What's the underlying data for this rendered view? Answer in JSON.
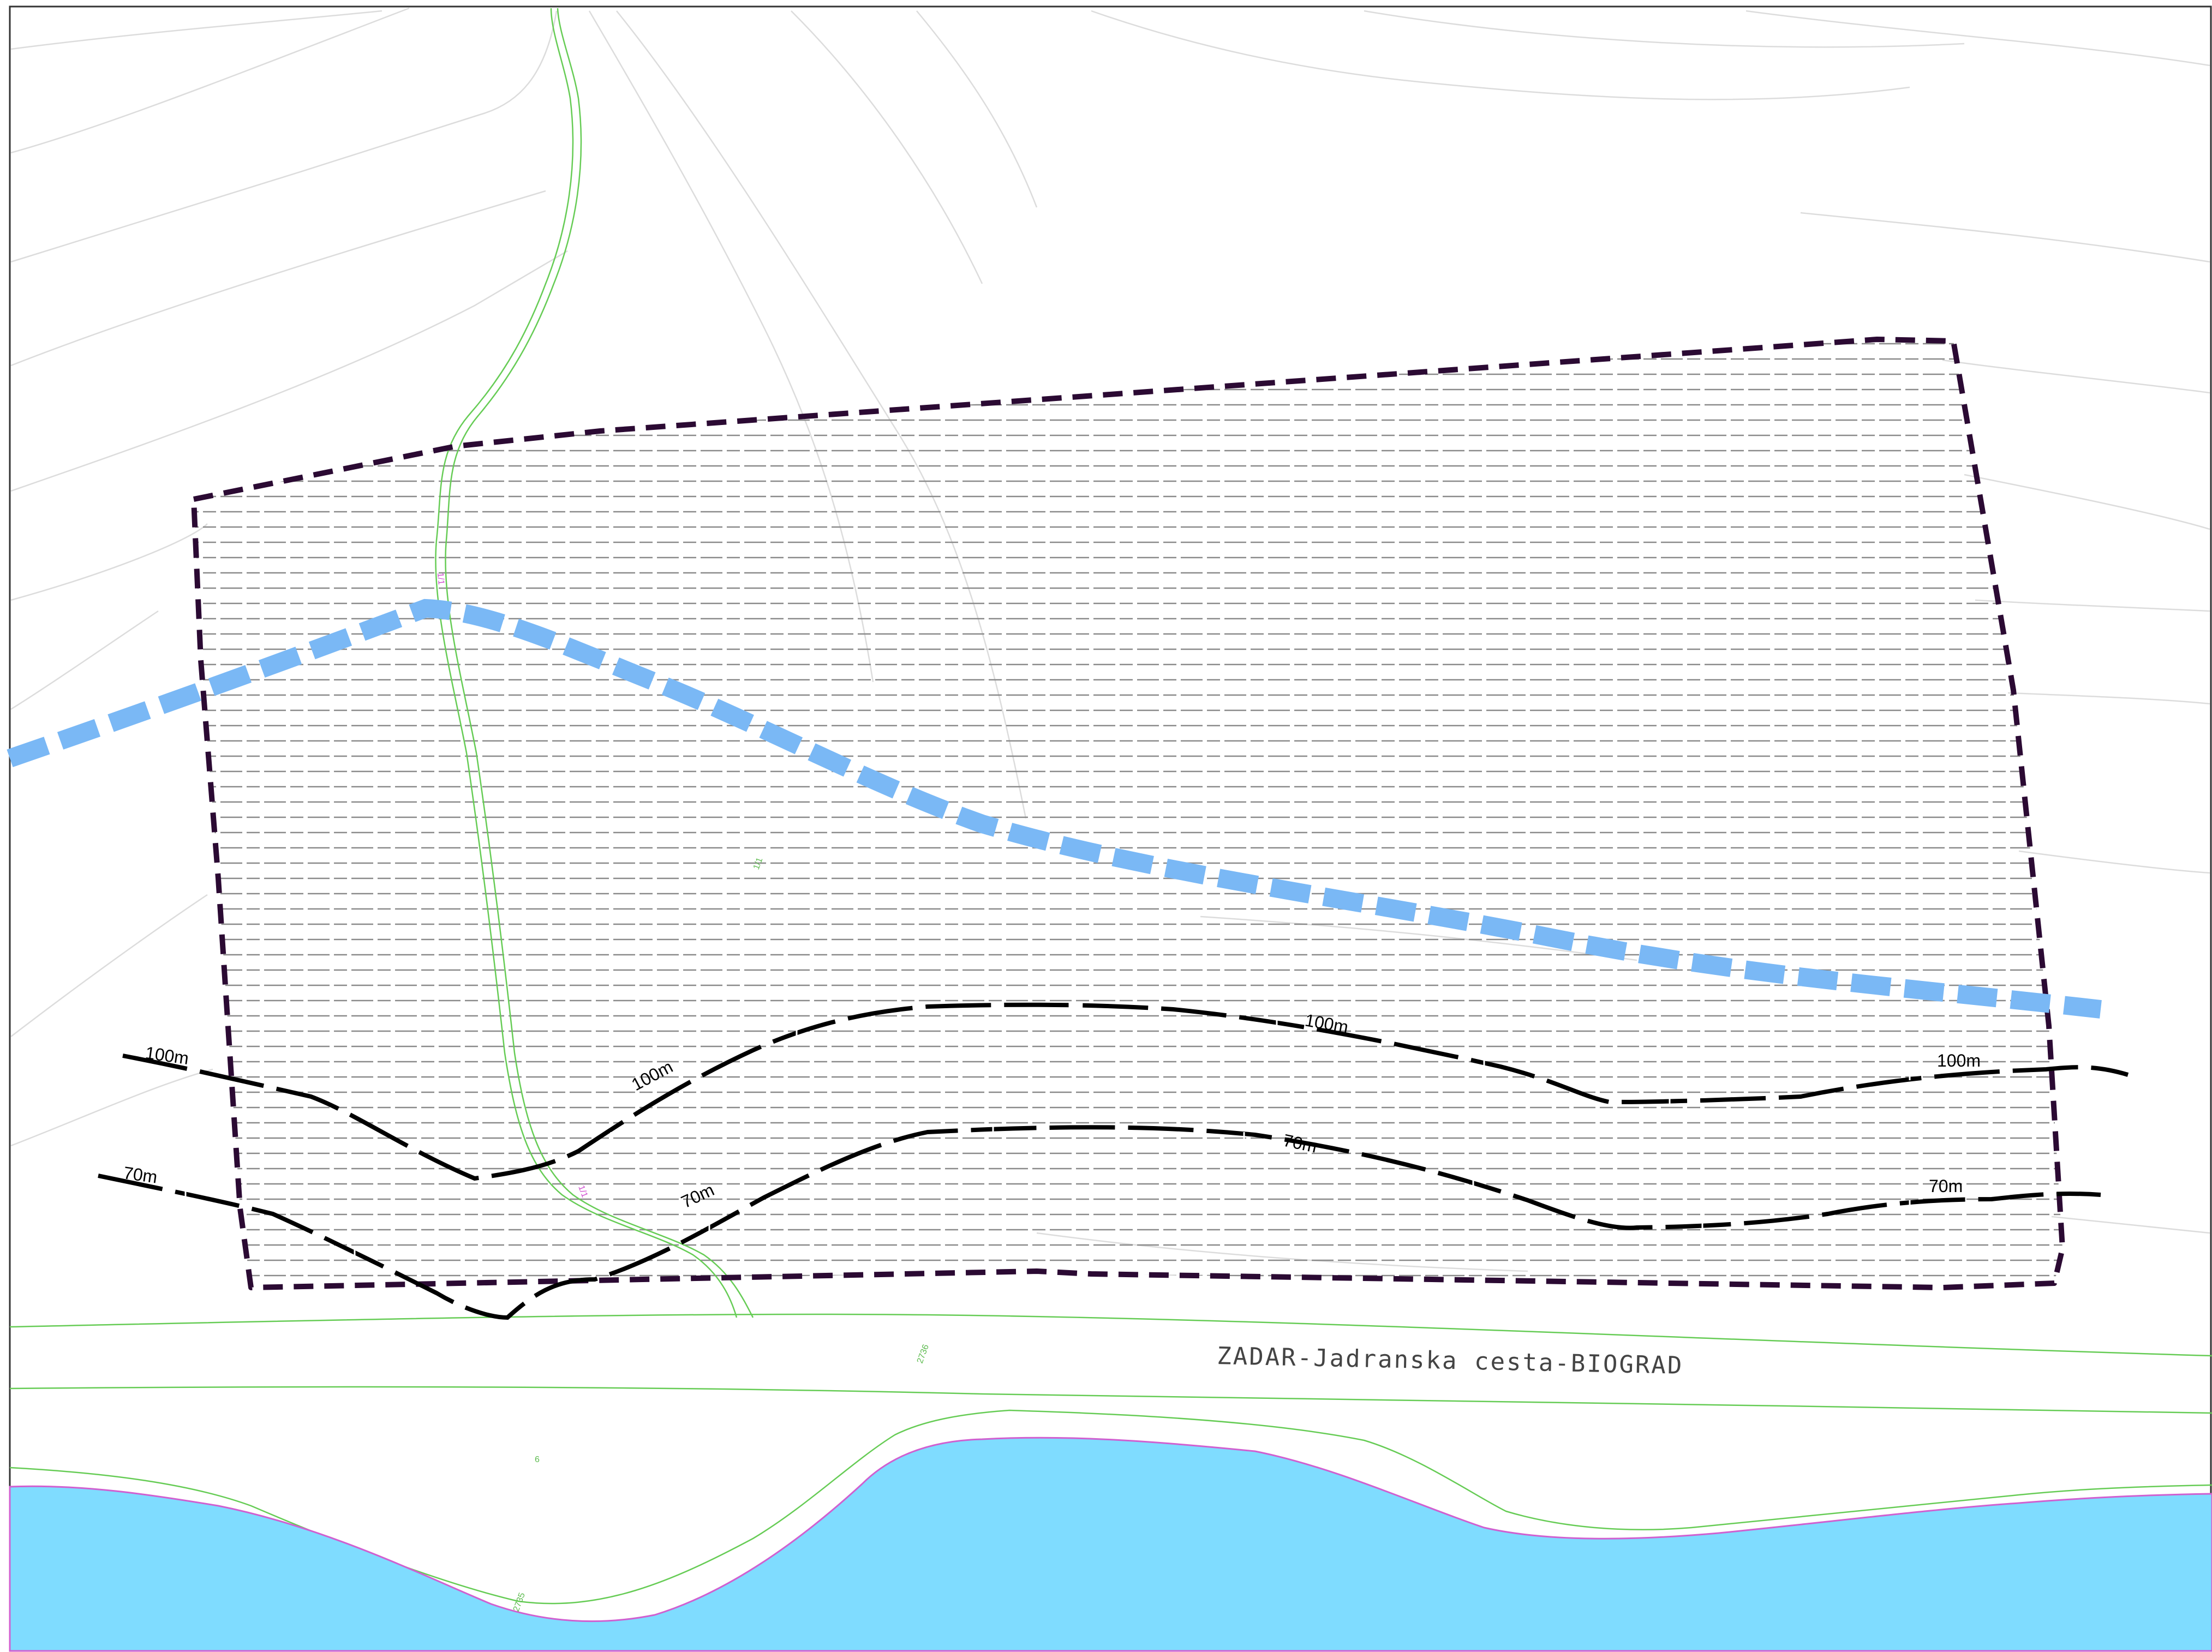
{
  "map": {
    "road_label": "ZADAR-Jadranska cesta-BIOGRAD",
    "contours": [
      {
        "label": "100m"
      },
      {
        "label": "100m"
      },
      {
        "label": "100m"
      },
      {
        "label": "100m"
      },
      {
        "label": "70m"
      },
      {
        "label": "70m"
      },
      {
        "label": "70m"
      },
      {
        "label": "70m"
      }
    ],
    "parcel_numbers": [
      "2736",
      "2735",
      "6",
      "1/1"
    ],
    "path_labels": [
      "1/1",
      "1/1"
    ],
    "colors": {
      "sea": "#7fdcff",
      "shoreline": "#d060d0",
      "cadastre_lines": "#66cc55",
      "boundary": "#2b0a33",
      "water_pipe": "#7ab8f5",
      "contour": "#000000",
      "hatch": "#888888",
      "terrain_lines": "#dddddd",
      "frame": "#333333"
    },
    "icons": {
      "boundary": "dashed-polygon",
      "pipe": "dashed-thick-line"
    }
  }
}
